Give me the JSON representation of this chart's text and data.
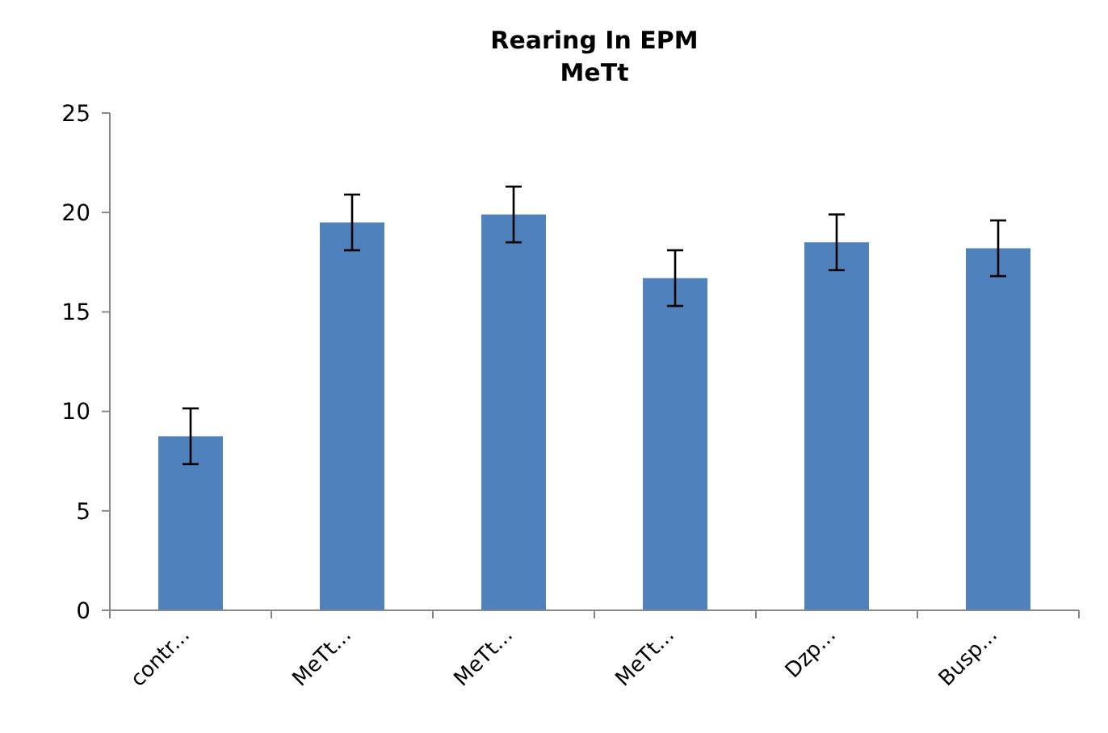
{
  "chart_data": {
    "type": "bar",
    "title": "Rearing In EPM\nMeTt",
    "categories": [
      "contr...",
      "MeTt...",
      "MeTt...",
      "MeTt...",
      "Dzp...",
      "Busp..."
    ],
    "values": [
      8.75,
      19.5,
      19.9,
      16.7,
      18.5,
      18.2
    ],
    "errors": [
      1.4,
      1.4,
      1.4,
      1.4,
      1.4,
      1.4
    ],
    "color": "#4f81bd",
    "ylim": [
      0,
      25
    ],
    "yticks": [
      0,
      5,
      10,
      15,
      20,
      25
    ],
    "grid": false
  }
}
